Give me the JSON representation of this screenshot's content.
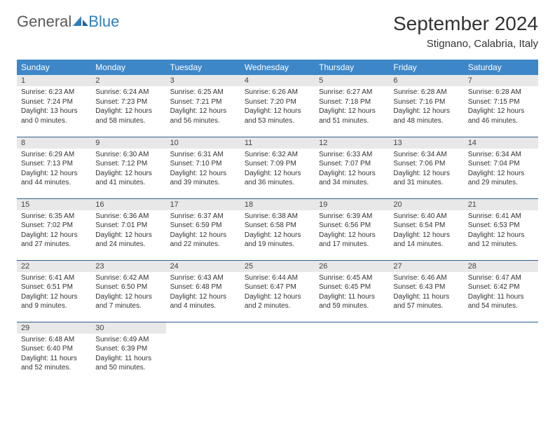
{
  "brand": {
    "part1": "General",
    "part2": "Blue"
  },
  "title": "September 2024",
  "location": "Stignano, Calabria, Italy",
  "calendar": {
    "header_bg": "#3d87c9",
    "header_fg": "#ffffff",
    "daybar_bg": "#e8e8e8",
    "rule_color": "#2f5f8f",
    "columns": [
      "Sunday",
      "Monday",
      "Tuesday",
      "Wednesday",
      "Thursday",
      "Friday",
      "Saturday"
    ],
    "rows": [
      [
        {
          "n": "1",
          "sr": "6:23 AM",
          "ss": "7:24 PM",
          "dl": "13 hours and 0 minutes."
        },
        {
          "n": "2",
          "sr": "6:24 AM",
          "ss": "7:23 PM",
          "dl": "12 hours and 58 minutes."
        },
        {
          "n": "3",
          "sr": "6:25 AM",
          "ss": "7:21 PM",
          "dl": "12 hours and 56 minutes."
        },
        {
          "n": "4",
          "sr": "6:26 AM",
          "ss": "7:20 PM",
          "dl": "12 hours and 53 minutes."
        },
        {
          "n": "5",
          "sr": "6:27 AM",
          "ss": "7:18 PM",
          "dl": "12 hours and 51 minutes."
        },
        {
          "n": "6",
          "sr": "6:28 AM",
          "ss": "7:16 PM",
          "dl": "12 hours and 48 minutes."
        },
        {
          "n": "7",
          "sr": "6:28 AM",
          "ss": "7:15 PM",
          "dl": "12 hours and 46 minutes."
        }
      ],
      [
        {
          "n": "8",
          "sr": "6:29 AM",
          "ss": "7:13 PM",
          "dl": "12 hours and 44 minutes."
        },
        {
          "n": "9",
          "sr": "6:30 AM",
          "ss": "7:12 PM",
          "dl": "12 hours and 41 minutes."
        },
        {
          "n": "10",
          "sr": "6:31 AM",
          "ss": "7:10 PM",
          "dl": "12 hours and 39 minutes."
        },
        {
          "n": "11",
          "sr": "6:32 AM",
          "ss": "7:09 PM",
          "dl": "12 hours and 36 minutes."
        },
        {
          "n": "12",
          "sr": "6:33 AM",
          "ss": "7:07 PM",
          "dl": "12 hours and 34 minutes."
        },
        {
          "n": "13",
          "sr": "6:34 AM",
          "ss": "7:06 PM",
          "dl": "12 hours and 31 minutes."
        },
        {
          "n": "14",
          "sr": "6:34 AM",
          "ss": "7:04 PM",
          "dl": "12 hours and 29 minutes."
        }
      ],
      [
        {
          "n": "15",
          "sr": "6:35 AM",
          "ss": "7:02 PM",
          "dl": "12 hours and 27 minutes."
        },
        {
          "n": "16",
          "sr": "6:36 AM",
          "ss": "7:01 PM",
          "dl": "12 hours and 24 minutes."
        },
        {
          "n": "17",
          "sr": "6:37 AM",
          "ss": "6:59 PM",
          "dl": "12 hours and 22 minutes."
        },
        {
          "n": "18",
          "sr": "6:38 AM",
          "ss": "6:58 PM",
          "dl": "12 hours and 19 minutes."
        },
        {
          "n": "19",
          "sr": "6:39 AM",
          "ss": "6:56 PM",
          "dl": "12 hours and 17 minutes."
        },
        {
          "n": "20",
          "sr": "6:40 AM",
          "ss": "6:54 PM",
          "dl": "12 hours and 14 minutes."
        },
        {
          "n": "21",
          "sr": "6:41 AM",
          "ss": "6:53 PM",
          "dl": "12 hours and 12 minutes."
        }
      ],
      [
        {
          "n": "22",
          "sr": "6:41 AM",
          "ss": "6:51 PM",
          "dl": "12 hours and 9 minutes."
        },
        {
          "n": "23",
          "sr": "6:42 AM",
          "ss": "6:50 PM",
          "dl": "12 hours and 7 minutes."
        },
        {
          "n": "24",
          "sr": "6:43 AM",
          "ss": "6:48 PM",
          "dl": "12 hours and 4 minutes."
        },
        {
          "n": "25",
          "sr": "6:44 AM",
          "ss": "6:47 PM",
          "dl": "12 hours and 2 minutes."
        },
        {
          "n": "26",
          "sr": "6:45 AM",
          "ss": "6:45 PM",
          "dl": "11 hours and 59 minutes."
        },
        {
          "n": "27",
          "sr": "6:46 AM",
          "ss": "6:43 PM",
          "dl": "11 hours and 57 minutes."
        },
        {
          "n": "28",
          "sr": "6:47 AM",
          "ss": "6:42 PM",
          "dl": "11 hours and 54 minutes."
        }
      ],
      [
        {
          "n": "29",
          "sr": "6:48 AM",
          "ss": "6:40 PM",
          "dl": "11 hours and 52 minutes."
        },
        {
          "n": "30",
          "sr": "6:49 AM",
          "ss": "6:39 PM",
          "dl": "11 hours and 50 minutes."
        },
        null,
        null,
        null,
        null,
        null
      ]
    ]
  },
  "labels": {
    "sunrise": "Sunrise:",
    "sunset": "Sunset:",
    "daylight": "Daylight:"
  }
}
